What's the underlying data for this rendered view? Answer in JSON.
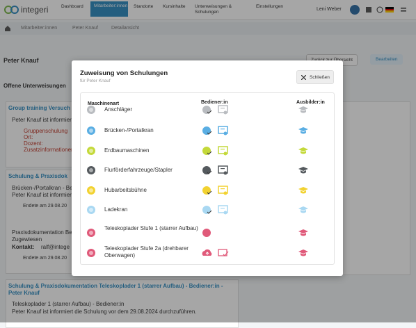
{
  "nav": {
    "brand": "integeri",
    "items": [
      "Dashboard",
      "Mitarbeiter:innen",
      "Standorte",
      "Kursinhalte",
      "Unterweisungen & Schulungen",
      "Einstellungen"
    ],
    "user": "Leni Weber"
  },
  "breadcrumb": [
    "Mitarbeiter:innen",
    "Peter Knauf",
    "Detailansicht"
  ],
  "page": {
    "title": "Peter Knauf",
    "back": "Zurück zur Übersicht",
    "edit": "Bearbeiten",
    "section": "Offene Unterweisungen",
    "card1": {
      "title": "Group training Versuch",
      "lines": [
        "Peter Knauf ist informiert",
        "Gruppenschulung",
        "Ort:",
        "Dozent:",
        "Zusatzinformationen"
      ]
    },
    "card2": {
      "title": "Schulung & Praxisdok",
      "lines": [
        "Brücken-/Portalkran - Bedi",
        "Peter Knauf ist informiert",
        "Endete am 29.08.20",
        "Praxisdokumentation Be",
        "Zugewiesen",
        "Kontakt:",
        "ralf@intege",
        "Endete am 29.08.20"
      ]
    },
    "card3": {
      "title": "Schulung & Praxisdokumentation Teleskoplader 1 (starrer Aufbau) - Bediener:in - Peter Knauf",
      "lines": [
        "Teleskoplader 1 (starrer Aufbau) - Bediener:in",
        "Peter Knauf ist informiert die Schulung vor dem 29.08.2024 durchzuführen."
      ]
    }
  },
  "modal": {
    "title": "Zuweisung von Schulungen",
    "subtitle": "für Peter Knauf",
    "close": "Schließen",
    "headers": [
      "Maschinenart",
      "Bediener:in",
      "Ausbilder:in"
    ],
    "rows": [
      "Anschläger",
      "Brücken-/Portalkran",
      "Erdbaumaschinen",
      "Flurförderfahrzeuge/Stapler",
      "Hubarbeitsbühne",
      "Ladekran",
      "Teleskoplader Stufe 1 (starrer Aufbau)",
      "Teleskoplader Stufe 2a (drehbarer Oberwagen)"
    ]
  }
}
